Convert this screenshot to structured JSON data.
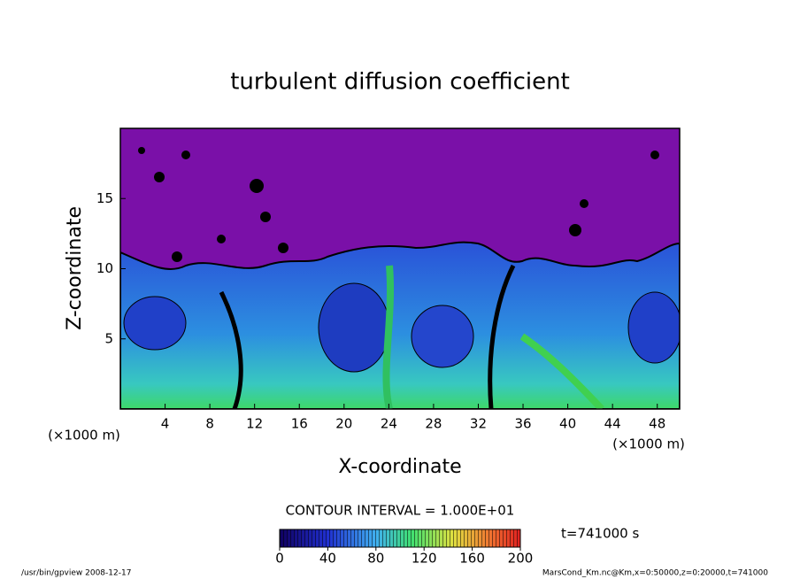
{
  "chart_data": {
    "type": "contour",
    "title": "turbulent diffusion coefficient",
    "x_label": "X-coordinate",
    "y_label": "Z-coordinate",
    "x_unit": "(×1000 m)",
    "y_unit": "(×1000 m)",
    "xlim": [
      0,
      50
    ],
    "xticks": [
      4,
      8,
      12,
      16,
      20,
      24,
      28,
      32,
      36,
      40,
      44,
      48
    ],
    "ylim": [
      0,
      20
    ],
    "yticks": [
      5,
      10,
      15
    ],
    "contour_interval": "CONTOUR INTERVAL = 1.000E+01",
    "colorbar": {
      "lim": [
        0,
        200
      ],
      "ticks": [
        0,
        40,
        80,
        120,
        160,
        200
      ]
    },
    "time_label": "t=741000 s",
    "footer_left": "/usr/bin/gpview   2008-12-17",
    "footer_right": "MarsCond_Km.nc@Km,x=0:50000,z=0:20000,t=741000"
  }
}
